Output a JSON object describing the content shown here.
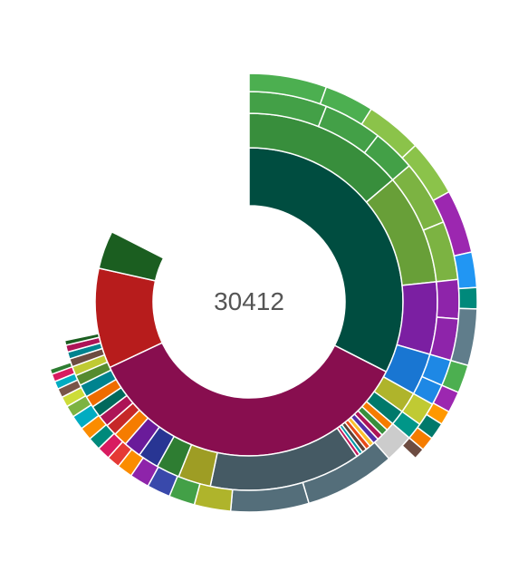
{
  "chart_data": {
    "type": "sunburst",
    "center_total": "30412",
    "center_value": 30412,
    "background": "#ffffff",
    "separator_color": "#ffffff",
    "rings": [
      {
        "level": 1,
        "segments": [
          {
            "value": 0.325,
            "color": "#004d40"
          },
          {
            "value": 0.355,
            "color": "#880e4f"
          },
          {
            "value": 0.105,
            "color": "#b71c1c"
          },
          {
            "value": 0.04,
            "color": "#1b5e20"
          }
        ]
      },
      {
        "level": 2,
        "segments": [
          {
            "value": 0.138,
            "color": "#388e3c"
          },
          {
            "value": 0.095,
            "color": "#689f38"
          },
          {
            "value": 0.062,
            "color": "#7b1fa2"
          },
          {
            "value": 0.036,
            "color": "#1976d2"
          },
          {
            "value": 0.018,
            "color": "#afb42b"
          },
          {
            "value": 0.013,
            "color": "#00796b"
          },
          {
            "value": 0.007,
            "color": "#f57c00"
          },
          {
            "value": 0.006,
            "color": "#388e3c"
          },
          {
            "value": 0.005,
            "color": "#ad1457"
          },
          {
            "value": 0.005,
            "color": "#512da8"
          },
          {
            "value": 0.004,
            "color": "#fbc02d"
          },
          {
            "value": 0.004,
            "color": "#e64a19"
          },
          {
            "value": 0.004,
            "color": "#5d4037"
          },
          {
            "value": 0.003,
            "color": "#0097a7"
          },
          {
            "value": 0.003,
            "color": "#c2185b"
          },
          {
            "value": 0.13,
            "color": "#455a64"
          },
          {
            "value": 0.028,
            "color": "#9e9d24"
          },
          {
            "value": 0.02,
            "color": "#2e7d32"
          },
          {
            "value": 0.018,
            "color": "#283593"
          },
          {
            "value": 0.015,
            "color": "#6a1b9a"
          },
          {
            "value": 0.012,
            "color": "#f57c00"
          },
          {
            "value": 0.01,
            "color": "#c62828"
          },
          {
            "value": 0.01,
            "color": "#ad1457"
          },
          {
            "value": 0.01,
            "color": "#00695c"
          },
          {
            "value": 0.01,
            "color": "#ef6c00"
          },
          {
            "value": 0.011,
            "color": "#00838f"
          },
          {
            "value": 0.009,
            "color": "#558b2f"
          },
          {
            "value": 0.008,
            "color": "#c0ca33"
          },
          {
            "value": 0.007,
            "color": "#6d4c41"
          },
          {
            "value": 0.006,
            "color": "#00838f"
          },
          {
            "value": 0.006,
            "color": "#ad1457"
          },
          {
            "value": 0.004,
            "color": "#1b5e20"
          }
        ]
      },
      {
        "level": 3,
        "segments": [
          {
            "value": 0.06,
            "color": "#43a047"
          },
          {
            "value": 0.045,
            "color": "#43a047"
          },
          {
            "value": 0.033,
            "color": "#43a047"
          },
          {
            "value": 0.05,
            "color": "#7cb342"
          },
          {
            "value": 0.045,
            "color": "#7cb342"
          },
          {
            "value": 0.03,
            "color": "#8e24aa"
          },
          {
            "value": 0.032,
            "color": "#8e24aa"
          },
          {
            "value": 0.02,
            "color": "#1e88e5"
          },
          {
            "value": 0.016,
            "color": "#1e88e5"
          },
          {
            "value": 0.018,
            "color": "#c0ca33"
          },
          {
            "value": 0.013,
            "color": "#009688"
          },
          {
            "value": 0.022,
            "color": "#cccccc"
          },
          {
            "value": 0.07,
            "color": "#546e7a"
          },
          {
            "value": 0.06,
            "color": "#546e7a"
          },
          {
            "value": 0.028,
            "color": "#afb42b"
          },
          {
            "value": 0.02,
            "color": "#43a047"
          },
          {
            "value": 0.018,
            "color": "#3949ab"
          },
          {
            "value": 0.015,
            "color": "#8e24aa"
          },
          {
            "value": 0.012,
            "color": "#fb8c00"
          },
          {
            "value": 0.01,
            "color": "#e53935"
          },
          {
            "value": 0.01,
            "color": "#d81b60"
          },
          {
            "value": 0.01,
            "color": "#00897b"
          },
          {
            "value": 0.01,
            "color": "#fb8c00"
          },
          {
            "value": 0.011,
            "color": "#00acc1"
          },
          {
            "value": 0.009,
            "color": "#7cb342"
          },
          {
            "value": 0.008,
            "color": "#cddc39"
          },
          {
            "value": 0.007,
            "color": "#795548"
          },
          {
            "value": 0.006,
            "color": "#00acc1"
          },
          {
            "value": 0.006,
            "color": "#d81b60"
          },
          {
            "value": 0.004,
            "color": "#2e7d32"
          }
        ]
      },
      {
        "level": 4,
        "segments": [
          {
            "value": 0.055,
            "color": "#4caf50"
          },
          {
            "value": 0.035,
            "color": "#4caf50"
          },
          {
            "value": 0.04,
            "color": "#8bc34a"
          },
          {
            "value": 0.04,
            "color": "#8bc34a"
          },
          {
            "value": 0.045,
            "color": "#9c27b0"
          },
          {
            "value": 0.025,
            "color": "#2196f3"
          },
          {
            "value": 0.015,
            "color": "#00897b"
          },
          {
            "value": 0.04,
            "color": "#607d8b"
          },
          {
            "value": 0.02,
            "color": "#4caf50"
          },
          {
            "value": 0.015,
            "color": "#9c27b0"
          },
          {
            "value": 0.01,
            "color": "#ff9800"
          },
          {
            "value": 0.012,
            "color": "#00796b"
          },
          {
            "value": 0.01,
            "color": "#f57c00"
          },
          {
            "value": 0.008,
            "color": "#6d4c41"
          }
        ]
      }
    ]
  }
}
